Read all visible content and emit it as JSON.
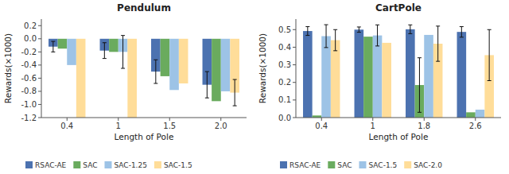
{
  "chart_data": [
    {
      "type": "bar",
      "title": "Pendulum",
      "xlabel": "Length of Pole",
      "ylabel": "Rewards(×1000)",
      "categories": [
        "0.4",
        "1",
        "1.5",
        "2.0"
      ],
      "series": [
        {
          "name": "RSAC-AE",
          "color": "#4C72B0",
          "values": [
            -0.12,
            -0.18,
            -0.5,
            -0.7
          ],
          "errors": [
            0.08,
            0.12,
            0.18,
            0.2
          ]
        },
        {
          "name": "SAC",
          "color": "#6AAB5E",
          "values": [
            -0.15,
            -0.2,
            -0.57,
            -0.95
          ],
          "errors": [
            null,
            null,
            null,
            null
          ]
        },
        {
          "name": "SAC-1.25",
          "color": "#9DC3E6",
          "values": [
            -0.4,
            -0.2,
            -0.78,
            -0.8
          ],
          "errors": [
            null,
            0.25,
            null,
            null
          ]
        },
        {
          "name": "SAC-1.5",
          "color": "#FFDD99",
          "values": [
            -1.2,
            -1.2,
            -0.68,
            -0.82
          ],
          "errors": [
            null,
            null,
            null,
            0.2
          ]
        }
      ],
      "ylim": [
        -1.2,
        0.3
      ],
      "yticks": [
        -1.2,
        {
          "value": -1,
          "label": "-1.0"
        },
        -0.8,
        -0.6,
        -0.4,
        -0.2,
        {
          "value": 0,
          "label": "0.0"
        },
        0.2
      ],
      "grid": false,
      "legend": "lower left"
    },
    {
      "type": "bar",
      "title": "CartPole",
      "xlabel": "Length of Pole",
      "ylabel": "Rewards(×1000)",
      "categories": [
        "0.4",
        "1",
        "1.8",
        "2.6"
      ],
      "series": [
        {
          "name": "RSAC-AE",
          "color": "#4C72B0",
          "values": [
            0.492,
            0.5,
            0.502,
            0.487
          ],
          "errors": [
            0.025,
            0.015,
            0.025,
            0.03
          ]
        },
        {
          "name": "SAC",
          "color": "#6AAB5E",
          "values": [
            0.012,
            0.46,
            0.185,
            0.03
          ],
          "errors": [
            null,
            null,
            0.155,
            null
          ]
        },
        {
          "name": "SAC-1.5",
          "color": "#9DC3E6",
          "values": [
            0.463,
            0.467,
            0.47,
            0.045
          ],
          "errors": [
            0.065,
            0.06,
            null,
            null
          ]
        },
        {
          "name": "SAC-2.0",
          "color": "#FFDD99",
          "values": [
            0.44,
            0.425,
            0.42,
            0.355
          ],
          "errors": [
            0.06,
            null,
            0.1,
            0.145
          ]
        }
      ],
      "ylim": [
        0.0,
        0.56
      ],
      "yticks": [
        {
          "value": 0,
          "label": "0.0"
        },
        0.1,
        0.2,
        0.3,
        0.4,
        0.5
      ],
      "grid": false,
      "legend": "lower left"
    }
  ]
}
